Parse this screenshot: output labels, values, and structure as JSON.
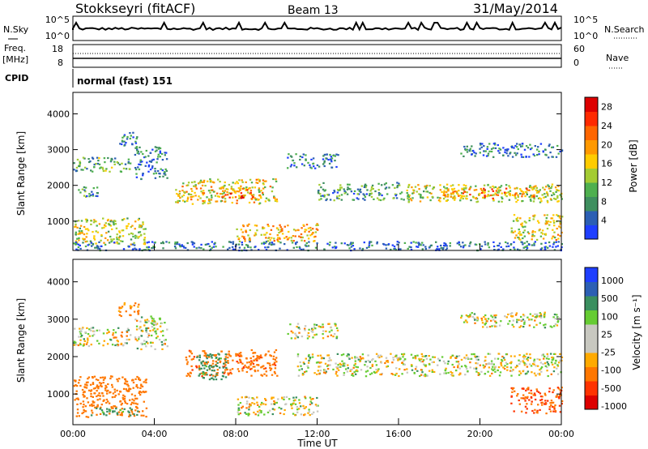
{
  "header": {
    "station": "Stokkseyri (fitACF)",
    "beam": "Beam 13",
    "date": "31/May/2014"
  },
  "panels": {
    "nsky": {
      "left_label": "N.Sky",
      "ticks_left": [
        "10^5",
        "10^0"
      ],
      "ticks_right": [
        "10^5",
        "10^0"
      ],
      "right_label": "N.Search"
    },
    "freq": {
      "left_label_1": "Freq.",
      "left_label_2": "[MHz]",
      "ticks_left": [
        "18",
        "8"
      ],
      "ticks_right": [
        "60",
        "0"
      ],
      "right_label": "Nave"
    },
    "cpid": {
      "left_label": "CPID",
      "text": "normal (fast) 151"
    }
  },
  "colors": {
    "power_scale": [
      "#1f3fff",
      "#2c5fb4",
      "#3f8f5f",
      "#4fb04f",
      "#a4cc33",
      "#ffcc00",
      "#ff9900",
      "#ff6600",
      "#ff2a00",
      "#dd0000"
    ],
    "velocity_scale": [
      "#1f3fff",
      "#2c5fb4",
      "#3a8f5f",
      "#66cc33",
      "#c8c8c0",
      "#c8c8c0",
      "#ffaa00",
      "#ff7700",
      "#ff3300",
      "#dd0000"
    ]
  },
  "chart_data": [
    {
      "type": "heatmap",
      "panel": "power",
      "ylabel": "Slant Range [km]",
      "ylim": [
        180,
        4600
      ],
      "yticks": [
        "4000",
        "3000",
        "2000",
        "1000"
      ],
      "xlim": [
        "00:00",
        "24:00"
      ],
      "colorbar": {
        "label": "Power [dB]",
        "ticks": [
          "28",
          "24",
          "20",
          "16",
          "12",
          "8",
          "4"
        ],
        "range": [
          0,
          30
        ]
      },
      "regions": [
        {
          "t0": 0.0,
          "t1": 2.8,
          "r0": 2400,
          "r1": 2800,
          "value": 10
        },
        {
          "t0": 2.2,
          "t1": 3.2,
          "r0": 3100,
          "r1": 3500,
          "value": 6
        },
        {
          "t0": 0.0,
          "t1": 1.2,
          "r0": 1700,
          "r1": 2000,
          "value": 8
        },
        {
          "t0": 0.0,
          "t1": 3.6,
          "r0": 350,
          "r1": 1100,
          "value": 14
        },
        {
          "t0": 3.0,
          "t1": 4.6,
          "r0": 2200,
          "r1": 3100,
          "value": 6
        },
        {
          "t0": 5.0,
          "t1": 10.0,
          "r0": 1500,
          "r1": 2200,
          "value": 16
        },
        {
          "t0": 7.2,
          "t1": 8.8,
          "r0": 1600,
          "r1": 1950,
          "value": 22
        },
        {
          "t0": 8.0,
          "t1": 12.0,
          "r0": 450,
          "r1": 950,
          "value": 18
        },
        {
          "t0": 12.0,
          "t1": 16.0,
          "r0": 1600,
          "r1": 2100,
          "value": 8
        },
        {
          "t0": 16.0,
          "t1": 24.0,
          "r0": 1550,
          "r1": 2050,
          "value": 14
        },
        {
          "t0": 18.0,
          "t1": 23.0,
          "r0": 1650,
          "r1": 1950,
          "value": 20
        },
        {
          "t0": 21.5,
          "t1": 24.0,
          "r0": 500,
          "r1": 1200,
          "value": 16
        },
        {
          "t0": 19.0,
          "t1": 24.0,
          "r0": 2800,
          "r1": 3200,
          "value": 6
        },
        {
          "t0": 10.5,
          "t1": 13.0,
          "r0": 2500,
          "r1": 2900,
          "value": 6
        },
        {
          "t0": 0.0,
          "t1": 24.0,
          "r0": 200,
          "r1": 450,
          "value": 5
        }
      ]
    },
    {
      "type": "heatmap",
      "panel": "velocity",
      "ylabel": "Slant Range [km]",
      "ylim": [
        180,
        4600
      ],
      "yticks": [
        "4000",
        "3000",
        "2000",
        "1000"
      ],
      "xlabel": "Time UT",
      "xticks": [
        "00:00",
        "04:00",
        "08:00",
        "12:00",
        "16:00",
        "20:00",
        "00:00"
      ],
      "colorbar": {
        "label": "Velocity [m s⁻¹]",
        "ticks": [
          "1000",
          "500",
          "100",
          "25",
          "-25",
          "-100",
          "-500",
          "-1000"
        ]
      },
      "regions": [
        {
          "t0": 0.0,
          "t1": 2.8,
          "r0": 2300,
          "r1": 2800,
          "value": 0
        },
        {
          "t0": 2.2,
          "t1": 3.2,
          "r0": 3100,
          "r1": 3500,
          "value": -150
        },
        {
          "t0": 0.0,
          "t1": 3.6,
          "r0": 400,
          "r1": 1500,
          "value": -300
        },
        {
          "t0": 0.8,
          "t1": 3.2,
          "r0": 450,
          "r1": 650,
          "value": 200
        },
        {
          "t0": 3.0,
          "t1": 4.6,
          "r0": 2200,
          "r1": 3100,
          "value": 0
        },
        {
          "t0": 5.5,
          "t1": 10.0,
          "r0": 1500,
          "r1": 2200,
          "value": -400
        },
        {
          "t0": 6.0,
          "t1": 7.5,
          "r0": 1400,
          "r1": 2100,
          "value": 200
        },
        {
          "t0": 8.0,
          "t1": 12.0,
          "r0": 450,
          "r1": 950,
          "value": 0
        },
        {
          "t0": 11.0,
          "t1": 24.0,
          "r0": 1500,
          "r1": 2100,
          "value": 0
        },
        {
          "t0": 21.5,
          "t1": 24.0,
          "r0": 500,
          "r1": 1200,
          "value": -500
        },
        {
          "t0": 19.0,
          "t1": 24.0,
          "r0": 2800,
          "r1": 3200,
          "value": 0
        },
        {
          "t0": 10.5,
          "t1": 13.0,
          "r0": 2500,
          "r1": 2900,
          "value": 0
        }
      ]
    }
  ]
}
